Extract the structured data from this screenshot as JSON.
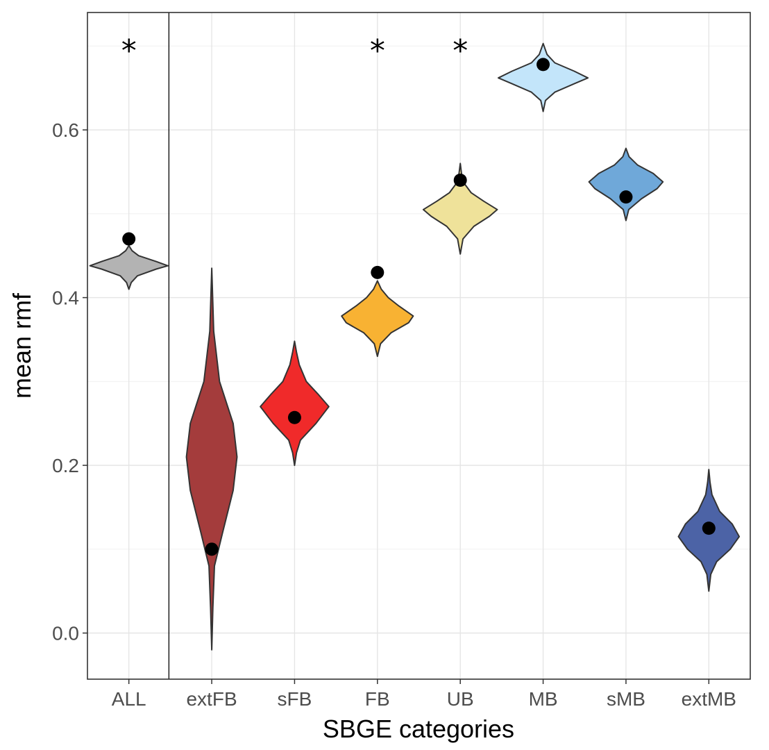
{
  "chart_data": {
    "type": "violin",
    "xlabel": "SBGE categories",
    "ylabel": "mean rmf",
    "ylim": [
      -0.055,
      0.74
    ],
    "yticks": [
      0.0,
      0.2,
      0.4,
      0.6
    ],
    "ytick_labels": [
      "0.0",
      "0.2",
      "0.4",
      "0.6"
    ],
    "grid": true,
    "separator_after": "ALL",
    "significance_marker": "*",
    "categories": [
      {
        "name": "ALL",
        "color": "#b3b3b3",
        "observed": 0.47,
        "vmin": 0.41,
        "vmax": 0.462,
        "profile": [
          [
            0.41,
            0.0
          ],
          [
            0.418,
            0.06
          ],
          [
            0.426,
            0.22
          ],
          [
            0.434,
            0.7
          ],
          [
            0.438,
            1.0
          ],
          [
            0.443,
            0.7
          ],
          [
            0.45,
            0.25
          ],
          [
            0.456,
            0.08
          ],
          [
            0.462,
            0.0
          ]
        ],
        "significant": true
      },
      {
        "name": "extFB",
        "color": "#a43c3c",
        "observed": 0.1,
        "vmin": -0.02,
        "vmax": 0.435,
        "profile": [
          [
            -0.02,
            0.0
          ],
          [
            0.03,
            0.03
          ],
          [
            0.08,
            0.07
          ],
          [
            0.12,
            0.28
          ],
          [
            0.17,
            0.55
          ],
          [
            0.21,
            0.65
          ],
          [
            0.25,
            0.55
          ],
          [
            0.3,
            0.2
          ],
          [
            0.36,
            0.05
          ],
          [
            0.435,
            0.0
          ]
        ],
        "significant": false
      },
      {
        "name": "sFB",
        "color": "#f02a2a",
        "observed": 0.257,
        "vmin": 0.2,
        "vmax": 0.348,
        "profile": [
          [
            0.2,
            0.0
          ],
          [
            0.215,
            0.05
          ],
          [
            0.23,
            0.15
          ],
          [
            0.25,
            0.55
          ],
          [
            0.27,
            0.88
          ],
          [
            0.285,
            0.6
          ],
          [
            0.3,
            0.3
          ],
          [
            0.32,
            0.12
          ],
          [
            0.335,
            0.05
          ],
          [
            0.348,
            0.0
          ]
        ],
        "significant": false
      },
      {
        "name": "FB",
        "color": "#f8b233",
        "observed": 0.43,
        "vmin": 0.33,
        "vmax": 0.42,
        "profile": [
          [
            0.33,
            0.0
          ],
          [
            0.345,
            0.08
          ],
          [
            0.358,
            0.35
          ],
          [
            0.37,
            0.8
          ],
          [
            0.378,
            0.92
          ],
          [
            0.39,
            0.55
          ],
          [
            0.4,
            0.28
          ],
          [
            0.41,
            0.1
          ],
          [
            0.42,
            0.0
          ]
        ],
        "significant": true
      },
      {
        "name": "UB",
        "color": "#efe29a",
        "observed": 0.54,
        "vmin": 0.452,
        "vmax": 0.56,
        "profile": [
          [
            0.452,
            0.0
          ],
          [
            0.47,
            0.07
          ],
          [
            0.485,
            0.35
          ],
          [
            0.497,
            0.75
          ],
          [
            0.505,
            0.95
          ],
          [
            0.515,
            0.6
          ],
          [
            0.525,
            0.28
          ],
          [
            0.535,
            0.12
          ],
          [
            0.545,
            0.04
          ],
          [
            0.56,
            0.0
          ]
        ],
        "significant": true
      },
      {
        "name": "MB",
        "color": "#c3e5fa",
        "observed": 0.678,
        "vmin": 0.622,
        "vmax": 0.703,
        "profile": [
          [
            0.622,
            0.0
          ],
          [
            0.635,
            0.06
          ],
          [
            0.645,
            0.3
          ],
          [
            0.655,
            0.8
          ],
          [
            0.662,
            1.15
          ],
          [
            0.67,
            0.8
          ],
          [
            0.68,
            0.3
          ],
          [
            0.69,
            0.1
          ],
          [
            0.703,
            0.0
          ]
        ],
        "significant": false
      },
      {
        "name": "sMB",
        "color": "#6fa8d9",
        "observed": 0.52,
        "vmin": 0.492,
        "vmax": 0.578,
        "profile": [
          [
            0.492,
            0.0
          ],
          [
            0.505,
            0.07
          ],
          [
            0.518,
            0.4
          ],
          [
            0.53,
            0.8
          ],
          [
            0.538,
            0.95
          ],
          [
            0.548,
            0.7
          ],
          [
            0.558,
            0.3
          ],
          [
            0.568,
            0.08
          ],
          [
            0.578,
            0.0
          ]
        ],
        "significant": false
      },
      {
        "name": "extMB",
        "color": "#4c63a6",
        "observed": 0.125,
        "vmin": 0.05,
        "vmax": 0.195,
        "profile": [
          [
            0.05,
            0.0
          ],
          [
            0.07,
            0.05
          ],
          [
            0.085,
            0.2
          ],
          [
            0.1,
            0.55
          ],
          [
            0.115,
            0.78
          ],
          [
            0.13,
            0.6
          ],
          [
            0.145,
            0.28
          ],
          [
            0.165,
            0.08
          ],
          [
            0.18,
            0.03
          ],
          [
            0.195,
            0.0
          ]
        ],
        "significant": false
      }
    ]
  }
}
